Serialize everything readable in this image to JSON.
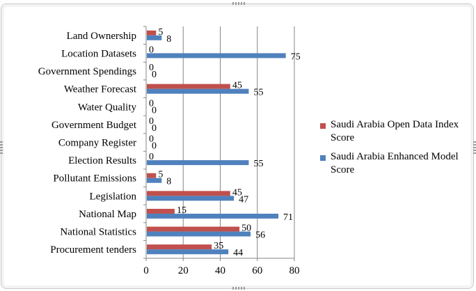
{
  "chart_data": {
    "type": "bar",
    "orientation": "horizontal",
    "categories": [
      "Land Ownership",
      "Location Datasets",
      "Government Spendings",
      "Weather Forecast",
      "Water Quality",
      "Government Budget",
      "Company Register",
      "Election Results",
      "Pollutant Emissions",
      "Legislation",
      "National Map",
      "National Statistics",
      "Procurement tenders"
    ],
    "series": [
      {
        "name": "Saudi Arabia Open Data Index Score",
        "color": "#c0504d",
        "values": [
          5,
          0,
          0,
          45,
          0,
          0,
          0,
          0,
          5,
          45,
          15,
          50,
          35
        ]
      },
      {
        "name": "Saudi Arabia Enhanced Model Score",
        "color": "#4f81bd",
        "values": [
          8,
          75,
          0,
          55,
          0,
          0,
          0,
          55,
          8,
          47,
          71,
          56,
          44
        ]
      }
    ],
    "xlim": [
      0,
      80
    ],
    "xticks": [
      0,
      20,
      40,
      60,
      80
    ],
    "grid": "vertical",
    "legend_position": "right",
    "title": "",
    "xlabel": "",
    "ylabel": ""
  }
}
